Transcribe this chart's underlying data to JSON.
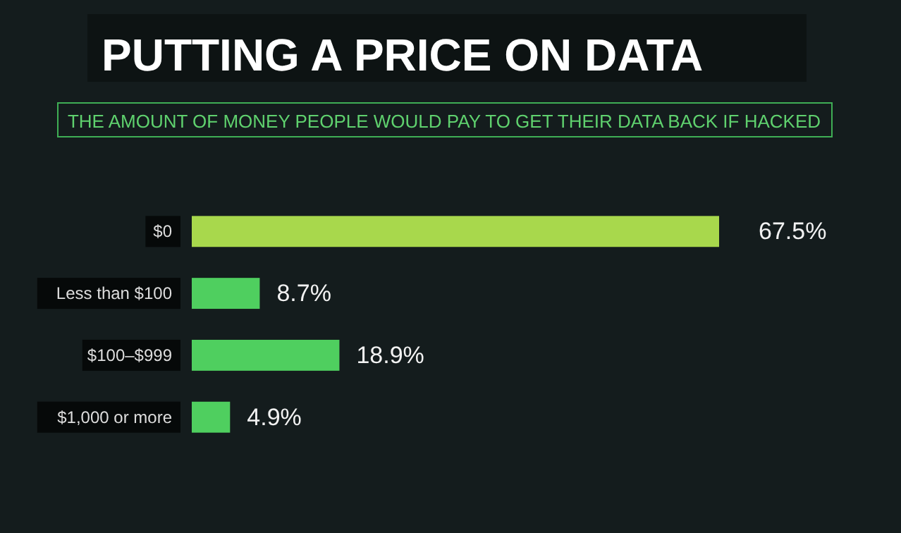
{
  "chart_data": {
    "type": "bar",
    "orientation": "horizontal",
    "title": "PUTTING A PRICE ON DATA",
    "subtitle": "THE AMOUNT OF MONEY PEOPLE WOULD PAY TO GET THEIR DATA BACK IF HACKED",
    "categories": [
      "$0",
      "Less than $100",
      "$100–$999",
      "$1,000 or more"
    ],
    "values": [
      67.5,
      8.7,
      18.9,
      4.9
    ],
    "colors": [
      "#a8d84c",
      "#4fcf5f",
      "#4fcf5f",
      "#4fcf5f"
    ],
    "value_labels": [
      "67.5%",
      "8.7%",
      "18.9%",
      "4.9%"
    ]
  }
}
